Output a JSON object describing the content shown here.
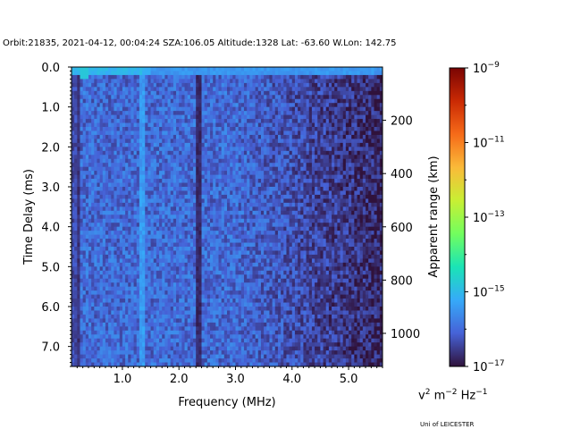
{
  "header": {
    "title": "Orbit:21835, 2021-04-12, 00:04:24 SZA:106.05 Altitude:1328 Lat: -63.60 W.Lon: 142.75"
  },
  "footer": {
    "credit": "Uni of LEICESTER"
  },
  "colors": {
    "colormap_stops": [
      "#30123b",
      "#4662d7",
      "#36aaf9",
      "#1ae4b6",
      "#72fe5e",
      "#c8ef34",
      "#faba39",
      "#f66b19",
      "#ca2a04",
      "#7a0403"
    ],
    "background": "#ffffff",
    "axis": "#000000"
  },
  "chart_data": {
    "type": "heatmap",
    "title": "Orbit:21835, 2021-04-12, 00:04:24 SZA:106.05 Altitude:1328 Lat: -63.60 W.Lon: 142.75",
    "xlabel": "Frequency (MHz)",
    "ylabel": "Time Delay (ms)",
    "y2label": "Apparent range (km)",
    "xlim": [
      0.1,
      5.6
    ],
    "ylim": [
      7.5,
      0.0
    ],
    "xticks": [
      1.0,
      2.0,
      3.0,
      4.0,
      5.0
    ],
    "xtick_labels": [
      "1.0",
      "2.0",
      "3.0",
      "4.0",
      "5.0"
    ],
    "yticks": [
      0.0,
      1.0,
      2.0,
      3.0,
      4.0,
      5.0,
      6.0,
      7.0
    ],
    "ytick_labels": [
      "0.0",
      "1.0",
      "2.0",
      "3.0",
      "4.0",
      "5.0",
      "6.0",
      "7.0"
    ],
    "y2ticks": [
      200,
      400,
      600,
      800,
      1000
    ],
    "y2tick_labels": [
      "200",
      "400",
      "600",
      "800",
      "1000"
    ],
    "y2_range_per_ms": 149.9,
    "colorbar": {
      "label": "v² m⁻² Hz⁻¹",
      "scale": "log",
      "range_exponent": [
        -17,
        -9
      ],
      "ticks": [
        -17,
        -15,
        -13,
        -11,
        -9
      ],
      "tick_labels": [
        {
          "base": "10",
          "exp": "−17"
        },
        {
          "base": "10",
          "exp": "−15"
        },
        {
          "base": "10",
          "exp": "−13"
        },
        {
          "base": "10",
          "exp": "−11"
        },
        {
          "base": "10",
          "exp": "−9"
        }
      ]
    },
    "grid": false,
    "features": [
      {
        "description": "strong return at zero delay",
        "time_delay_ms": 0.1,
        "freq_range_mhz": [
          0.1,
          5.6
        ],
        "level_exp": -15.5
      },
      {
        "description": "enhanced band",
        "freq_mhz": 1.35,
        "level_exp": -15.3
      },
      {
        "description": "dark band",
        "freq_mhz": 2.35,
        "level_exp": -16.8
      },
      {
        "description": "dark band",
        "freq_mhz": 0.22,
        "level_exp": -16.7
      },
      {
        "description": "background noise level, low frequency",
        "freq_range_mhz": [
          0.1,
          3.0
        ],
        "level_exp": -16.0
      },
      {
        "description": "background noise level, high frequency",
        "freq_range_mhz": [
          4.5,
          5.6
        ],
        "level_exp": -16.8
      }
    ]
  }
}
